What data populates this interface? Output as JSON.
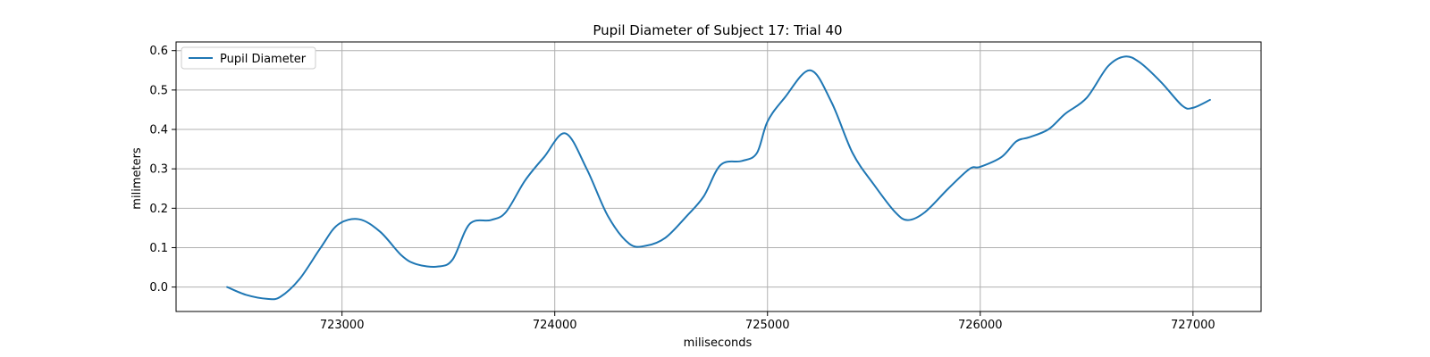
{
  "chart_data": {
    "type": "line",
    "title": "Pupil Diameter of Subject 17: Trial 40",
    "xlabel": "miliseconds",
    "ylabel": "milimeters",
    "xlim": [
      722220,
      727320
    ],
    "ylim": [
      -0.062,
      0.622
    ],
    "xticks": [
      723000,
      724000,
      725000,
      726000,
      727000
    ],
    "yticks": [
      0.0,
      0.1,
      0.2,
      0.3,
      0.4,
      0.5,
      0.6
    ],
    "xtick_labels": [
      "723000",
      "724000",
      "725000",
      "726000",
      "727000"
    ],
    "ytick_labels": [
      "0.0",
      "0.1",
      "0.2",
      "0.3",
      "0.4",
      "0.5",
      "0.6"
    ],
    "grid": true,
    "legend_position": "top-left",
    "color": "#1f77b4",
    "series": [
      {
        "name": "Pupil Diameter",
        "x": [
          722460,
          722550,
          722650,
          722710,
          722800,
          722900,
          722980,
          723080,
          723180,
          723280,
          723350,
          723450,
          723520,
          723600,
          723700,
          723770,
          723860,
          723950,
          724050,
          724150,
          724250,
          724350,
          724430,
          724520,
          724620,
          724700,
          724780,
          724880,
          724950,
          725000,
          725080,
          725200,
          725300,
          725400,
          725500,
          725600,
          725660,
          725740,
          725850,
          725950,
          726000,
          726100,
          726170,
          726230,
          726320,
          726400,
          726500,
          726600,
          726680,
          726750,
          726850,
          726950,
          727000,
          727080
        ],
        "y": [
          0.0,
          -0.02,
          -0.03,
          -0.025,
          0.02,
          0.1,
          0.158,
          0.172,
          0.14,
          0.08,
          0.058,
          0.052,
          0.07,
          0.16,
          0.17,
          0.19,
          0.27,
          0.33,
          0.39,
          0.3,
          0.18,
          0.11,
          0.105,
          0.125,
          0.18,
          0.23,
          0.31,
          0.32,
          0.34,
          0.42,
          0.48,
          0.55,
          0.47,
          0.34,
          0.26,
          0.19,
          0.17,
          0.19,
          0.25,
          0.3,
          0.305,
          0.33,
          0.37,
          0.38,
          0.4,
          0.44,
          0.48,
          0.56,
          0.585,
          0.57,
          0.52,
          0.46,
          0.455,
          0.475
        ]
      }
    ]
  }
}
